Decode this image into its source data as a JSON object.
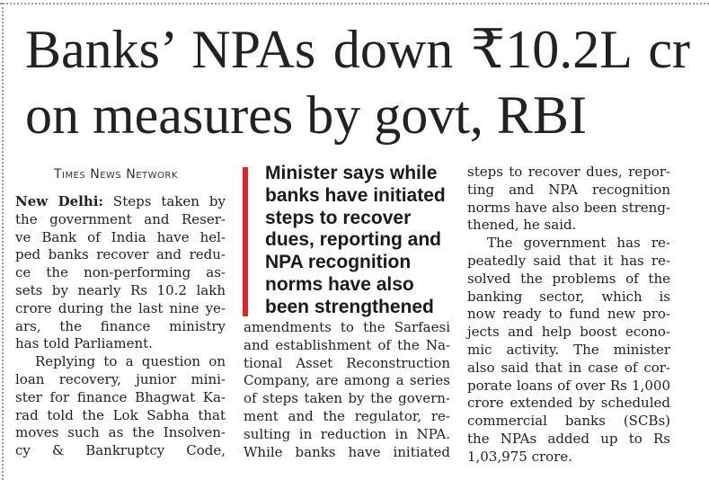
{
  "headline": {
    "lines": [
      "Banks’ NPAs down ₹10.2L cr",
      "on measures by govt, RBI"
    ]
  },
  "byline": "Times News Network",
  "pull_quote": {
    "accent_color": "#d9252c",
    "lines": [
      "Minister says while",
      "banks have initiated",
      "steps to recover",
      "dues, reporting and",
      "NPA recognition",
      "norms have also",
      "been strengthened"
    ]
  },
  "column1": {
    "dateline": "New Delhi:",
    "lines": [
      "Steps taken by",
      "the government and Reser-",
      "ve Bank of India have hel-",
      "ped banks recover and redu-",
      "ce the non-performing as-",
      "sets by nearly Rs 10.2 lakh",
      "crore during the last nine ye-",
      "ars, the finance ministry",
      "has told Parliament.",
      "Replying to a question on",
      "loan recovery, junior mini-",
      "ster for finance Bhagwat Ka-",
      "rad told the Lok Sabha that",
      "moves such as the Insolven-",
      "cy & Bankruptcy Code,"
    ]
  },
  "column2": {
    "lines": [
      "amendments to the Sarfaesi",
      "and establishment of the Na-",
      "tional Asset Reconstruction",
      "Company, are among a series",
      "of steps taken by the govern-",
      "ment and the regulator, re-",
      "sulting in reduction in NPA.",
      "While banks have initiated"
    ]
  },
  "column3": {
    "lines": [
      "steps to recover dues, repor-",
      "ting and NPA recognition",
      "norms have also been streng-",
      "thened, he said.",
      "The government has re-",
      "peatedly said that it has re-",
      "solved the problems of the",
      "banking sector, which is",
      "now ready to fund new pro-",
      "jects and help boost econo-",
      "mic activity. The minister",
      "also said that in case of cor-",
      "porate loans of over Rs 1,000",
      "crore extended by scheduled",
      "commercial banks (SCBs)",
      "the NPAs added up to Rs",
      "1,03,975 crore."
    ]
  }
}
